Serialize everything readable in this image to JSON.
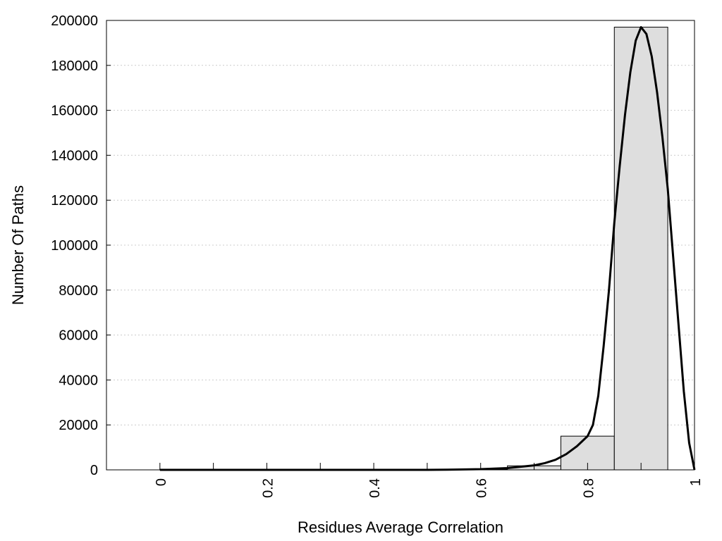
{
  "chart_data": {
    "type": "bar",
    "xlabel": "Residues Average Correlation",
    "ylabel": "Number Of Paths",
    "xlim": [
      -0.1,
      1.0
    ],
    "ylim": [
      0,
      200000
    ],
    "x_ticks": [
      0,
      0.1,
      0.2,
      0.3,
      0.4,
      0.5,
      0.6,
      0.7,
      0.8,
      0.9,
      1.0
    ],
    "x_tick_labels": [
      "0",
      "0.2",
      "0.4",
      "0.6",
      "0.8",
      "1"
    ],
    "x_tick_label_values": [
      0,
      0.2,
      0.4,
      0.6,
      0.8,
      1.0
    ],
    "y_tick_labels": [
      "0",
      "20000",
      "40000",
      "60000",
      "80000",
      "100000",
      "120000",
      "140000",
      "160000",
      "180000",
      "200000"
    ],
    "y_tick_values": [
      0,
      20000,
      40000,
      60000,
      80000,
      100000,
      120000,
      140000,
      160000,
      180000,
      200000
    ],
    "grid": "horizontal dotted",
    "bars": [
      {
        "x0": 0.0,
        "x1": 0.1,
        "value": 0
      },
      {
        "x0": 0.1,
        "x1": 0.2,
        "value": 0
      },
      {
        "x0": 0.2,
        "x1": 0.3,
        "value": 0
      },
      {
        "x0": 0.3,
        "x1": 0.4,
        "value": 0
      },
      {
        "x0": 0.4,
        "x1": 0.5,
        "value": 0
      },
      {
        "x0": 0.5,
        "x1": 0.55,
        "value": 0
      },
      {
        "x0": 0.55,
        "x1": 0.65,
        "value": 150
      },
      {
        "x0": 0.65,
        "x1": 0.75,
        "value": 1800
      },
      {
        "x0": 0.75,
        "x1": 0.85,
        "value": 15000
      },
      {
        "x0": 0.85,
        "x1": 0.95,
        "value": 197000
      }
    ],
    "curve": {
      "x": [
        0.0,
        0.5,
        0.55,
        0.6,
        0.65,
        0.7,
        0.72,
        0.74,
        0.76,
        0.78,
        0.8,
        0.81,
        0.82,
        0.83,
        0.84,
        0.85,
        0.86,
        0.87,
        0.88,
        0.89,
        0.9,
        0.91,
        0.92,
        0.93,
        0.94,
        0.95,
        0.96,
        0.97,
        0.98,
        0.99,
        1.0
      ],
      "y": [
        0,
        0,
        100,
        300,
        800,
        2000,
        3000,
        4500,
        7000,
        10500,
        15000,
        20000,
        33000,
        55000,
        80000,
        110000,
        135000,
        158000,
        177000,
        191000,
        197000,
        194000,
        184000,
        168000,
        148000,
        125000,
        95000,
        65000,
        35000,
        12000,
        0
      ]
    },
    "colors": {
      "bar_fill": "#dedede",
      "bar_stroke": "#000000",
      "curve": "#000000",
      "grid": "#cccccc"
    }
  }
}
